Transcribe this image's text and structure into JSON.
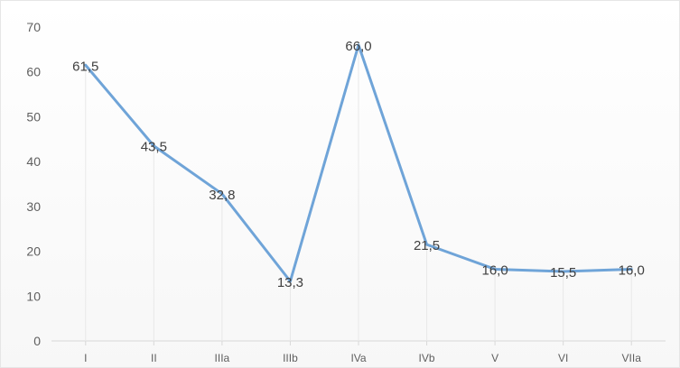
{
  "chart_data": {
    "type": "line",
    "title": "",
    "xlabel": "",
    "ylabel": "",
    "categories": [
      "I",
      "II",
      "IIIa",
      "IIIb",
      "IVa",
      "IVb",
      "V",
      "VI",
      "VIIa"
    ],
    "series": [
      {
        "values": [
          61.5,
          43.5,
          32.8,
          13.3,
          66.0,
          21.5,
          16.0,
          15.5,
          16.0
        ],
        "data_labels": [
          "61,5",
          "43,5",
          "32,8",
          "13,3",
          "66,0",
          "21,5",
          "16,0",
          "15,5",
          "16,0"
        ],
        "color": "#6FA4D8"
      }
    ],
    "ylim": [
      0,
      70
    ],
    "yticks": [
      0,
      10,
      20,
      30,
      40,
      50,
      60,
      70
    ],
    "ytick_labels": [
      "0",
      "10",
      "20",
      "30",
      "40",
      "50",
      "60",
      "70"
    ],
    "grid": "vertical-drop-lines",
    "legend": "none",
    "colors": {
      "line": "#6FA4D8",
      "axis": "#d9d9d9",
      "drop_line": "#e8e8e8",
      "text": "#5f5f5f",
      "data_label": "#404040"
    }
  }
}
